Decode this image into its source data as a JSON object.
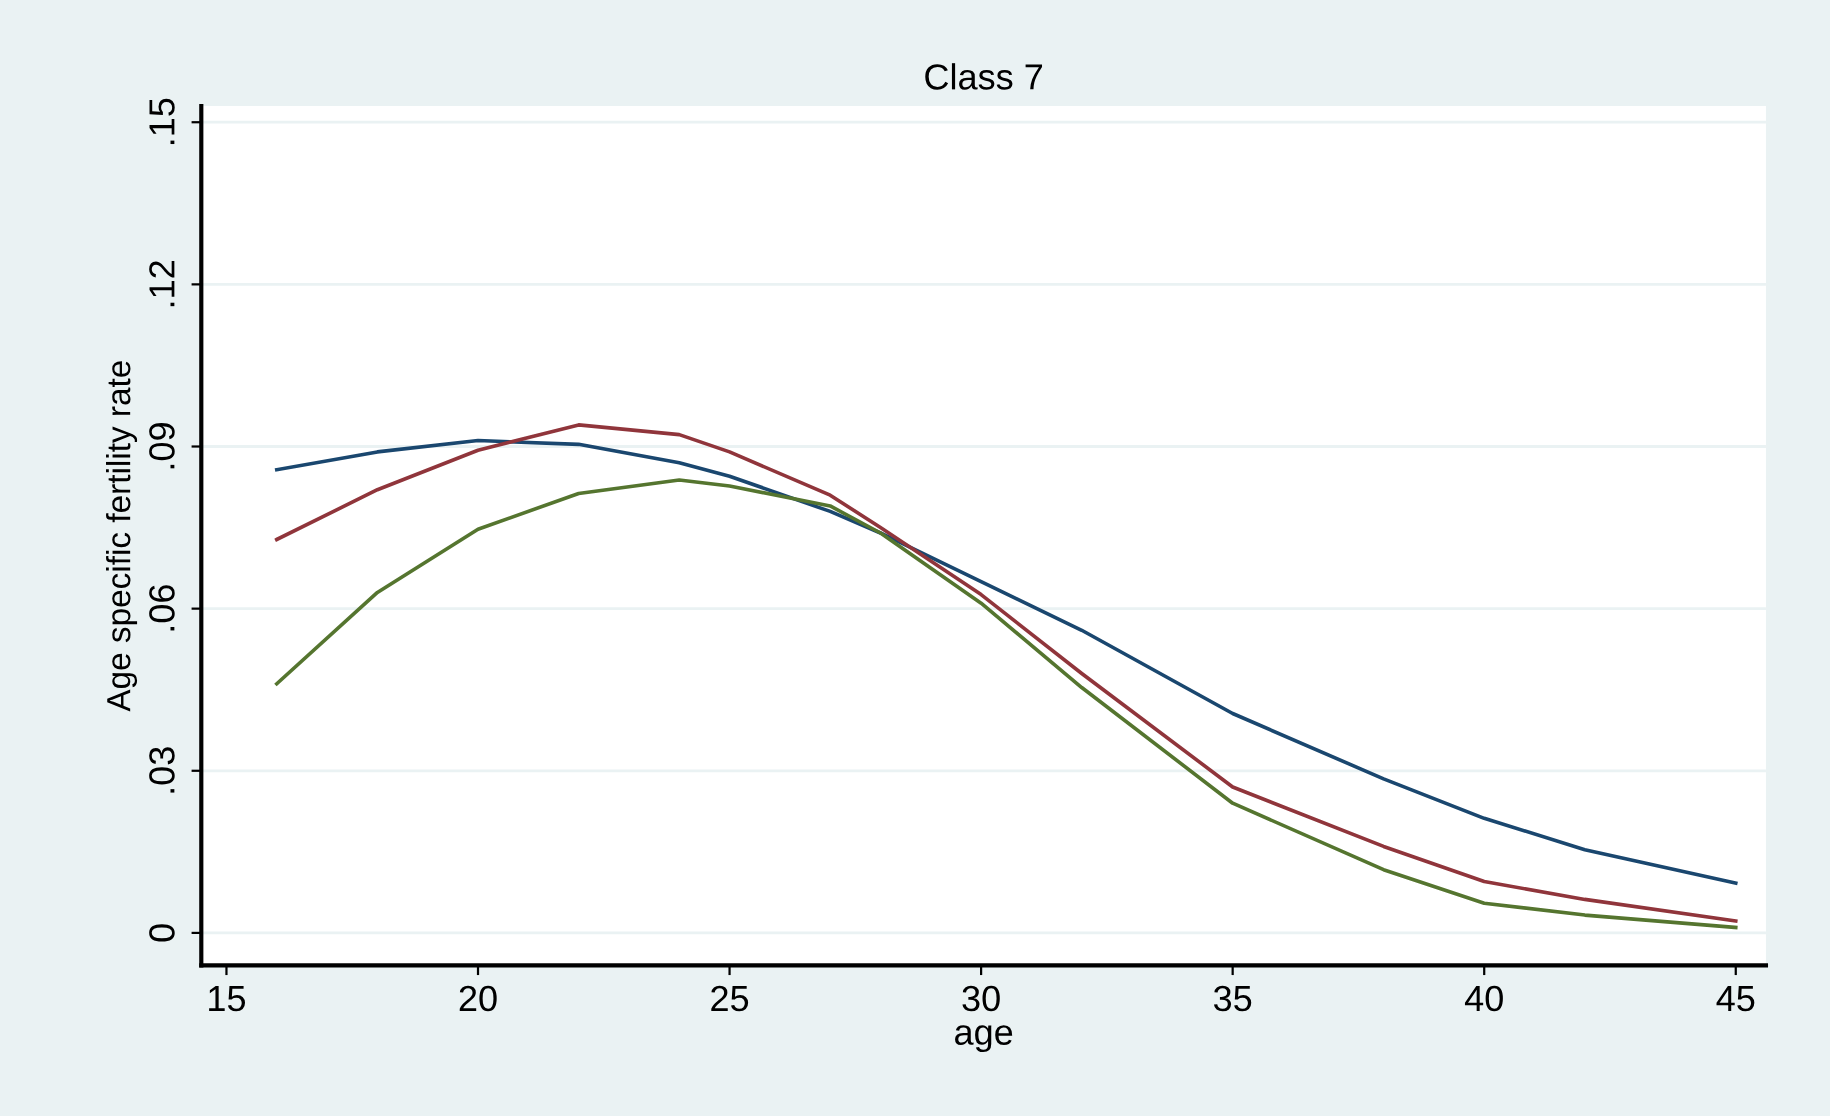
{
  "chart_data": {
    "type": "line",
    "title": "Class 7",
    "xlabel": "age",
    "ylabel": "Age specific fertility rate",
    "x": [
      16,
      18,
      20,
      22,
      24,
      25,
      27,
      28,
      30,
      32,
      35,
      38,
      40,
      42,
      45
    ],
    "series": [
      {
        "color": "#1a476f",
        "values": [
          0.0857,
          0.089,
          0.0911,
          0.0904,
          0.087,
          0.0845,
          0.078,
          0.074,
          0.065,
          0.056,
          0.0406,
          0.0285,
          0.0212,
          0.0154,
          0.0092
        ]
      },
      {
        "color": "#90353b",
        "values": [
          0.0728,
          0.082,
          0.0893,
          0.094,
          0.0922,
          0.089,
          0.081,
          0.075,
          0.0626,
          0.048,
          0.027,
          0.016,
          0.0095,
          0.0062,
          0.0022
        ]
      },
      {
        "color": "#55752f",
        "values": [
          0.0461,
          0.063,
          0.0747,
          0.0813,
          0.0838,
          0.0827,
          0.079,
          0.074,
          0.061,
          0.0454,
          0.024,
          0.0117,
          0.0055,
          0.0033,
          0.001
        ]
      }
    ],
    "xlim": [
      14.5,
      45.6
    ],
    "xticks": [
      15,
      20,
      25,
      30,
      35,
      40,
      45
    ],
    "ylim": [
      -0.006,
      0.153
    ],
    "yticks": [
      {
        "value": 0,
        "label": "0"
      },
      {
        "value": 0.03,
        "label": ".03"
      },
      {
        "value": 0.06,
        "label": ".06"
      },
      {
        "value": 0.09,
        "label": ".09"
      },
      {
        "value": 0.12,
        "label": ".12"
      },
      {
        "value": 0.15,
        "label": ".15"
      }
    ],
    "grid": "y",
    "marker": "none",
    "line_style": "solid"
  }
}
